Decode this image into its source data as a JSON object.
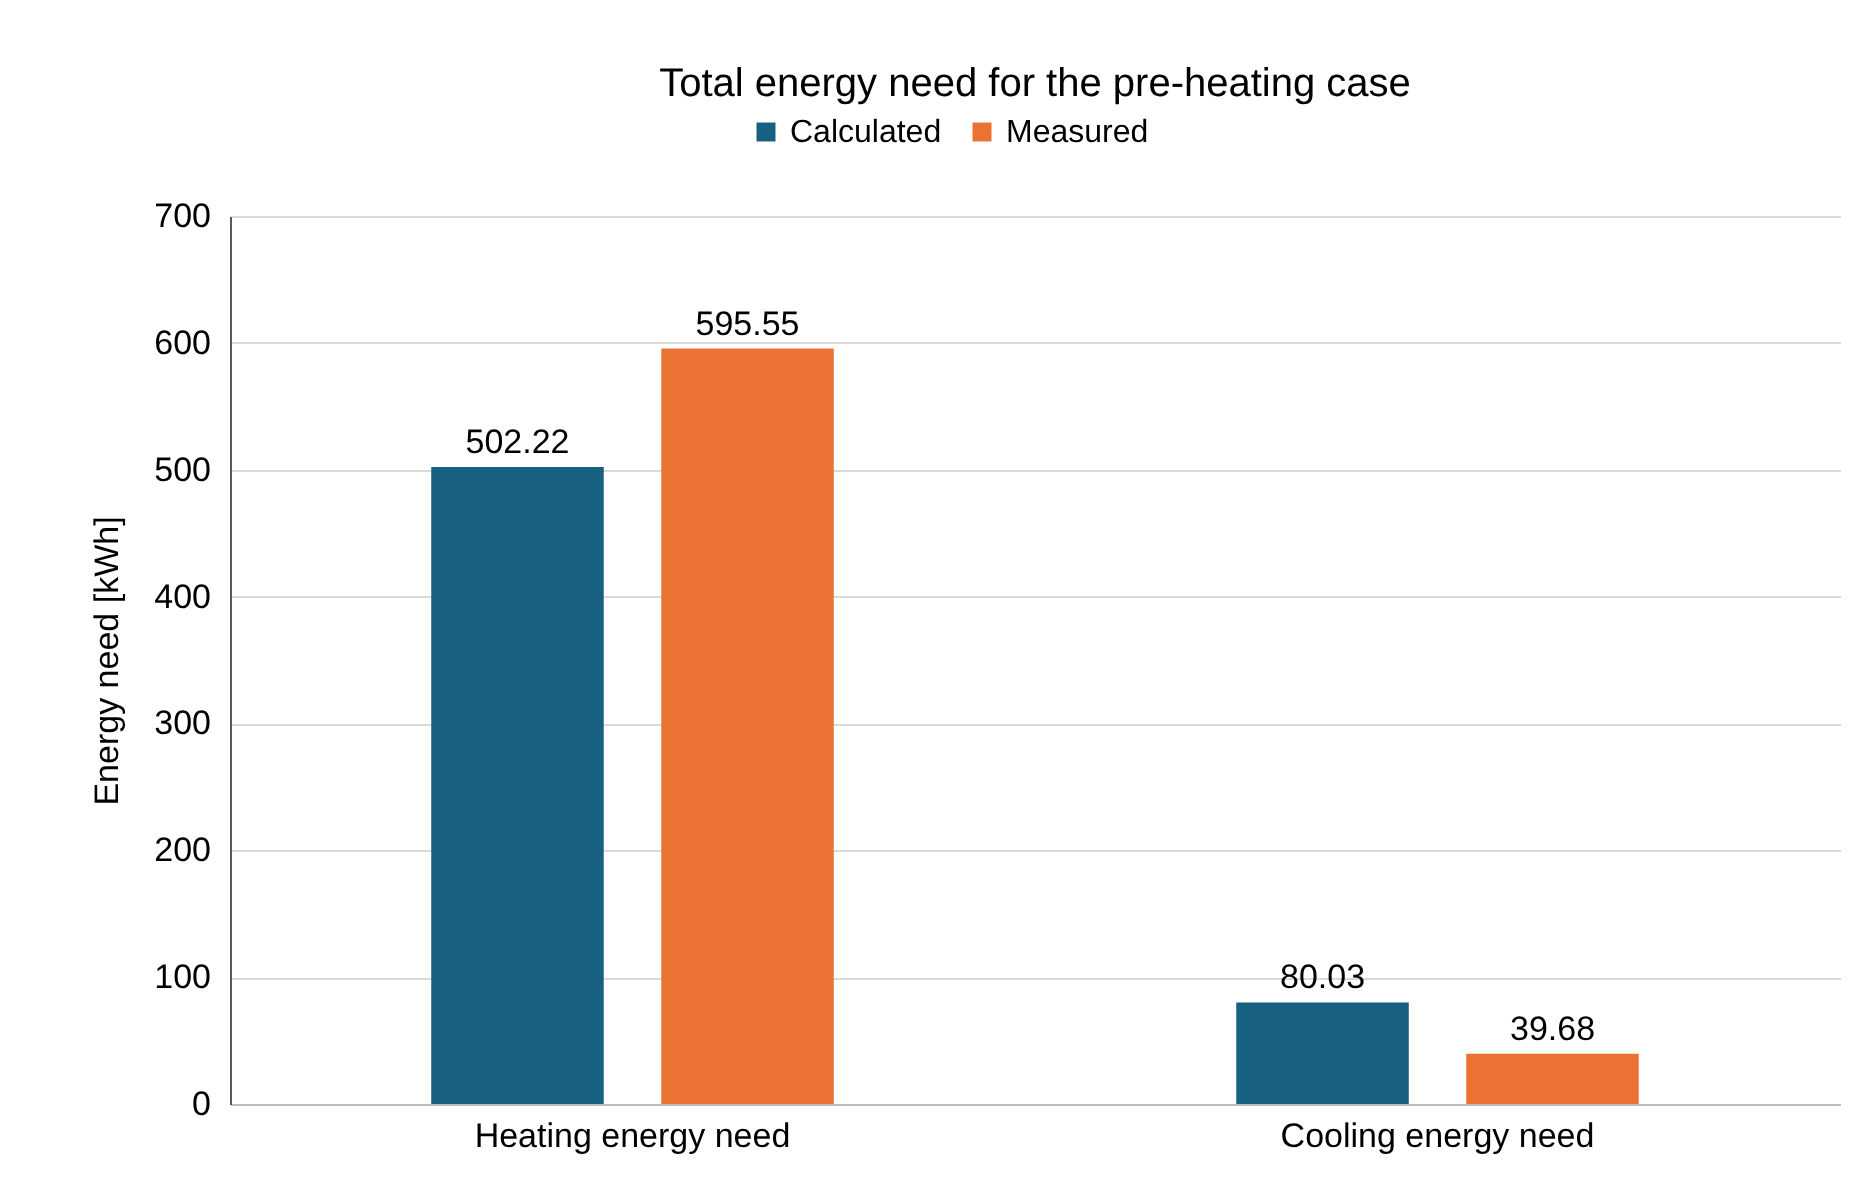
{
  "chart_data": {
    "type": "bar",
    "title": "Total energy need for the pre-heating case",
    "ylabel": "Energy need [kWh]",
    "categories": [
      "Heating energy need",
      "Cooling energy need"
    ],
    "series": [
      {
        "name": "Calculated",
        "color": "#17607f",
        "values": [
          502.22,
          80.03
        ]
      },
      {
        "name": "Measured",
        "color": "#ea7333",
        "values": [
          595.55,
          39.68
        ]
      }
    ],
    "ylim": [
      0,
      700
    ],
    "yticks": [
      0,
      100,
      200,
      300,
      400,
      500,
      600,
      700
    ],
    "grid": "y",
    "legend": "top",
    "data_labels": true
  }
}
